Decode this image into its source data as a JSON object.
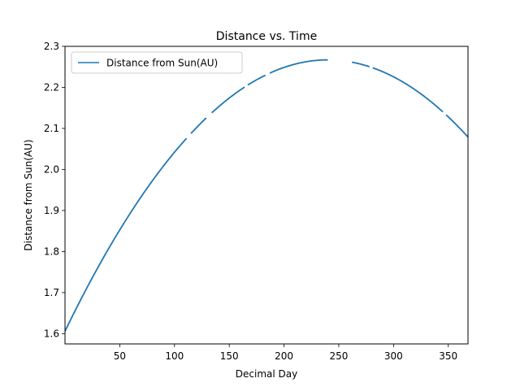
{
  "chart_data": {
    "type": "line",
    "title": "Distance vs. Time",
    "xlabel": "Decimal Day",
    "ylabel": "Distance from Sun(AU)",
    "xlim": [
      0,
      368
    ],
    "ylim": [
      1.575,
      2.3
    ],
    "xticks": [
      50,
      100,
      150,
      200,
      250,
      300,
      350
    ],
    "yticks": [
      1.6,
      1.7,
      1.8,
      1.9,
      2.0,
      2.1,
      2.2,
      2.3
    ],
    "xtick_labels": [
      "50",
      "100",
      "150",
      "200",
      "250",
      "300",
      "350"
    ],
    "ytick_labels": [
      "1.6",
      "1.7",
      "1.8",
      "1.9",
      "2.0",
      "2.1",
      "2.2",
      "2.3"
    ],
    "legend_position": "upper-left",
    "grid": false,
    "series": [
      {
        "name": "Distance from Sun(AU)",
        "color": "#1f77b4",
        "model": "quadratic",
        "vertex_x": 240,
        "vertex_y": 2.267,
        "start_y": 1.606,
        "segments": [
          [
            0,
            111
          ],
          [
            115,
            129
          ],
          [
            134,
            164
          ],
          [
            167,
            183
          ],
          [
            187,
            240
          ],
          [
            262,
            278
          ],
          [
            281,
            345
          ],
          [
            348,
            368
          ]
        ]
      }
    ]
  }
}
